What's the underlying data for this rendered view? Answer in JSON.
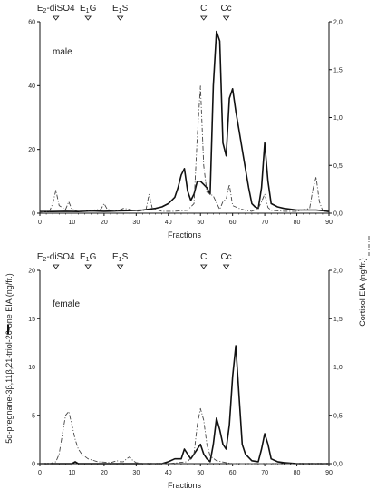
{
  "figure": {
    "left_axis_label": "5α-pregnane-3β,11β,21-triol-20-one EIA (ng/fr.)",
    "right_axis_label": "Cortisol EIA (ng/fr.)"
  },
  "chart_data": [
    {
      "type": "line",
      "panel_label": "male",
      "xlabel": "Fractions",
      "xlim": [
        0,
        90
      ],
      "xticks": [
        0,
        10,
        20,
        30,
        40,
        50,
        60,
        70,
        80,
        90
      ],
      "ylim_left": [
        0,
        60
      ],
      "yticks_left": [
        0,
        20,
        40,
        60
      ],
      "ylim_right": [
        0,
        2.0
      ],
      "yticks_right": [
        "0,0",
        "0,5",
        "1,0",
        "1,5",
        "2,0"
      ],
      "markers": [
        {
          "label": "E2-diSO4",
          "x": 5
        },
        {
          "label": "E1G",
          "x": 15
        },
        {
          "label": "E1S",
          "x": 25
        },
        {
          "label": "C",
          "x": 51
        },
        {
          "label": "Cc",
          "x": 58
        }
      ],
      "series": [
        {
          "style": "solid",
          "axis": "left",
          "x": [
            0,
            4,
            8,
            12,
            16,
            20,
            24,
            28,
            32,
            36,
            38,
            40,
            42,
            43,
            44,
            45,
            46,
            47,
            48,
            49,
            50,
            51,
            52,
            53,
            54,
            55,
            56,
            57,
            58,
            59,
            60,
            61,
            62,
            63,
            64,
            65,
            66,
            67,
            68,
            69,
            70,
            71,
            72,
            74,
            76,
            80,
            84,
            86,
            88,
            90
          ],
          "values": [
            0.5,
            0.5,
            0.6,
            0.5,
            0.7,
            0.6,
            0.7,
            0.8,
            1,
            1.5,
            2,
            3,
            5,
            8,
            12,
            14,
            7,
            4,
            6,
            10,
            10,
            9,
            8,
            6,
            40,
            57,
            54,
            22,
            18,
            36,
            39,
            32,
            26,
            20,
            14,
            8,
            3,
            2,
            1.5,
            8,
            22,
            10,
            3,
            2,
            1.5,
            1,
            1,
            1,
            0.8,
            0.5
          ]
        },
        {
          "style": "dash-dot",
          "axis": "right",
          "x": [
            0,
            3,
            4,
            5,
            6,
            8,
            9,
            10,
            12,
            16,
            19,
            20,
            21,
            24,
            26,
            28,
            30,
            33,
            34,
            35,
            38,
            42,
            46,
            48,
            49,
            50,
            51,
            52,
            54,
            56,
            57,
            58,
            59,
            60,
            62,
            64,
            66,
            68,
            69,
            70,
            71,
            72,
            76,
            80,
            84,
            85,
            86,
            87,
            88,
            90
          ],
          "values": [
            0.01,
            0.02,
            0.1,
            0.24,
            0.08,
            0.04,
            0.12,
            0.04,
            0.02,
            0.03,
            0.04,
            0.1,
            0.04,
            0.02,
            0.05,
            0.04,
            0.02,
            0.03,
            0.2,
            0.05,
            0.02,
            0.02,
            0.03,
            0.1,
            0.8,
            1.33,
            0.5,
            0.22,
            0.18,
            0.04,
            0.12,
            0.15,
            0.3,
            0.08,
            0.05,
            0.03,
            0.02,
            0.05,
            0.12,
            0.2,
            0.06,
            0.03,
            0.02,
            0.02,
            0.05,
            0.25,
            0.38,
            0.12,
            0.03,
            0.01
          ]
        }
      ]
    },
    {
      "type": "line",
      "panel_label": "female",
      "xlabel": "Fractions",
      "xlim": [
        0,
        90
      ],
      "xticks": [
        0,
        10,
        20,
        30,
        40,
        50,
        60,
        70,
        80,
        90
      ],
      "ylim_left": [
        0,
        20
      ],
      "yticks_left": [
        0,
        5,
        10,
        15,
        20
      ],
      "ylim_right": [
        0,
        2.0
      ],
      "yticks_right": [
        "0,0",
        "0,5",
        "1,0",
        "1,5",
        "2,0"
      ],
      "markers": [
        {
          "label": "E2-diSO4",
          "x": 5
        },
        {
          "label": "E1G",
          "x": 15
        },
        {
          "label": "E1S",
          "x": 25
        },
        {
          "label": "C",
          "x": 51
        },
        {
          "label": "Cc",
          "x": 58
        }
      ],
      "series": [
        {
          "style": "solid",
          "axis": "left",
          "x": [
            0,
            10,
            11,
            12,
            20,
            30,
            38,
            40,
            42,
            44,
            45,
            46,
            47,
            48,
            49,
            50,
            51,
            52,
            53,
            54,
            55,
            56,
            57,
            58,
            59,
            60,
            61,
            62,
            63,
            64,
            66,
            68,
            69,
            70,
            71,
            72,
            74,
            76,
            80,
            90
          ],
          "values": [
            0,
            0,
            0.2,
            0,
            0,
            0,
            0,
            0.2,
            0.5,
            0.5,
            1.5,
            1,
            0.5,
            1,
            1.5,
            2,
            1,
            0.5,
            0.2,
            2,
            4.7,
            3.5,
            2,
            1.5,
            4,
            9,
            12.2,
            7,
            2,
            1,
            0.3,
            0.2,
            1.5,
            3.1,
            2,
            0.5,
            0.2,
            0.1,
            0,
            0
          ]
        },
        {
          "style": "dash-dot",
          "axis": "right",
          "x": [
            0,
            3,
            5,
            6,
            7,
            8,
            9,
            10,
            11,
            12,
            13,
            15,
            18,
            22,
            24,
            25,
            26,
            27,
            28,
            29,
            30,
            32,
            40,
            46,
            48,
            49,
            50,
            51,
            52,
            53,
            55,
            58,
            60,
            62,
            70,
            80,
            90
          ],
          "values": [
            0,
            0,
            0.02,
            0.1,
            0.3,
            0.5,
            0.54,
            0.4,
            0.25,
            0.15,
            0.1,
            0.05,
            0.02,
            0.01,
            0.03,
            0.02,
            0.02,
            0.05,
            0.07,
            0.03,
            0.01,
            0,
            0,
            0.02,
            0.1,
            0.4,
            0.57,
            0.45,
            0.2,
            0.08,
            0.03,
            0.01,
            0,
            0,
            0,
            0,
            0
          ]
        }
      ]
    }
  ]
}
